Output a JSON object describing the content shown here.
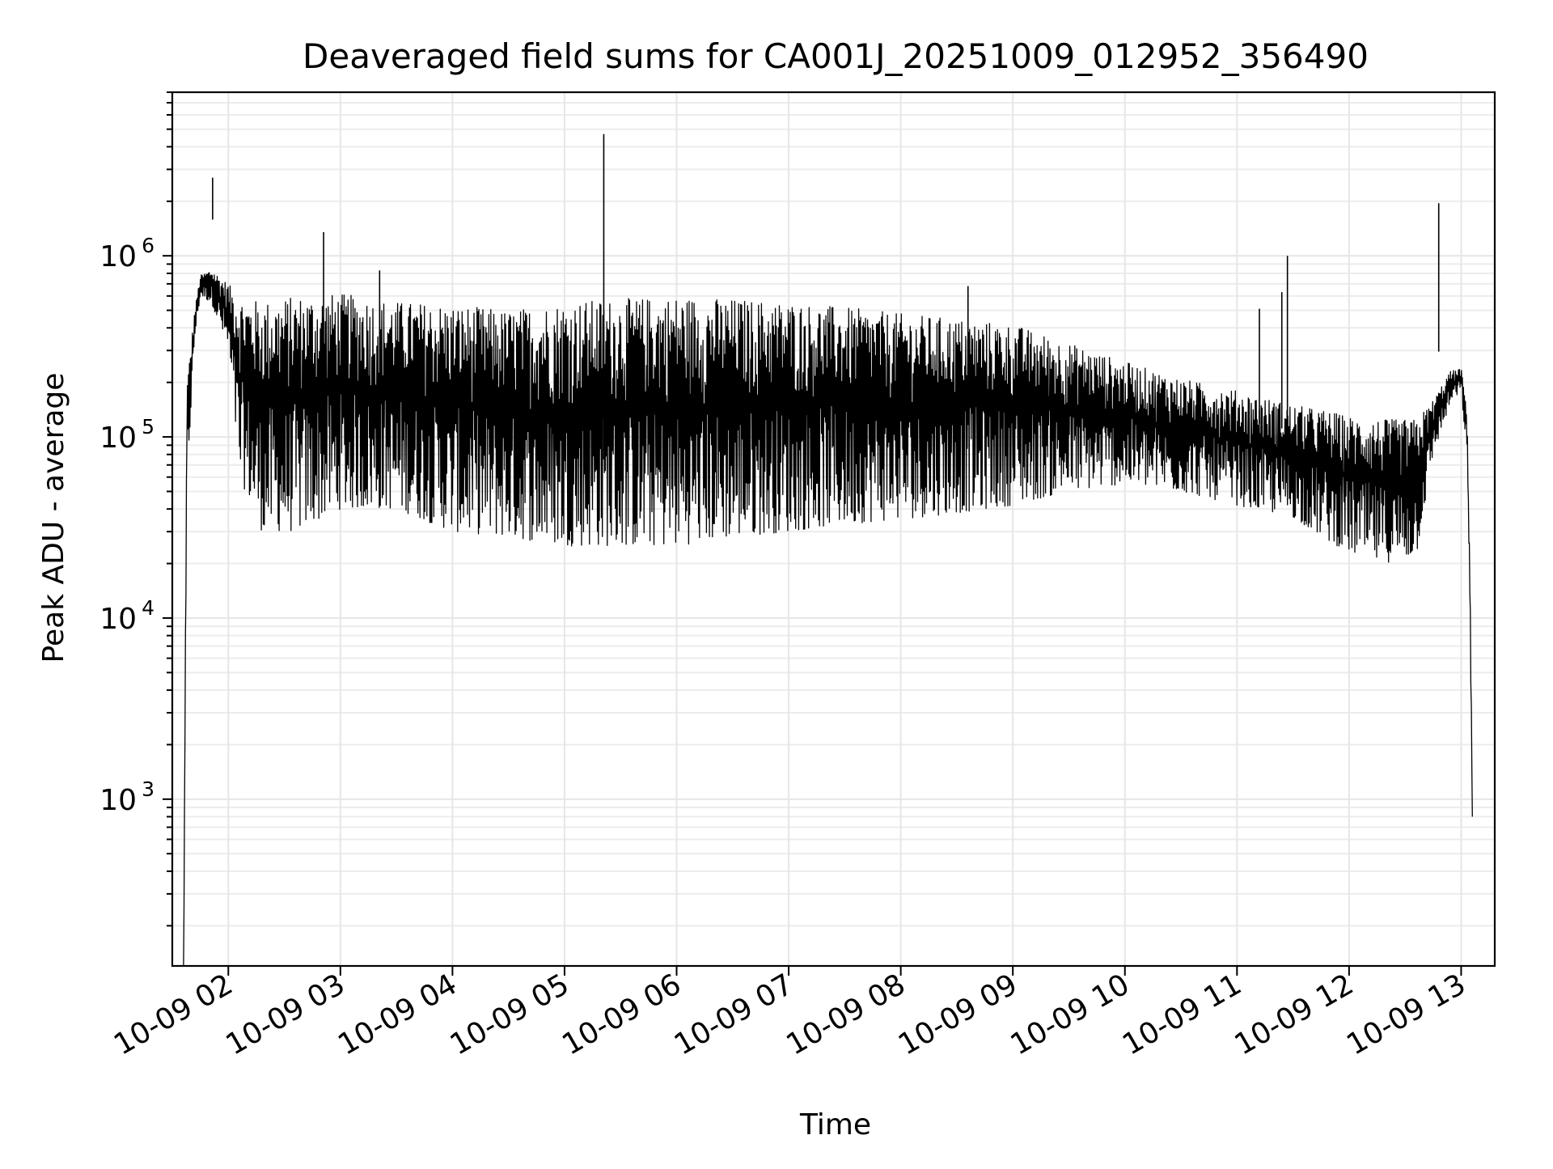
{
  "chart_data": {
    "type": "line",
    "title": "Deaveraged field sums for CA001J_20251009_012952_356490",
    "xlabel": "Time",
    "ylabel": "Peak ADU - average",
    "yscale": "log",
    "grid": true,
    "ylim": [
      120,
      8000000
    ],
    "xlim": [
      1.5,
      13.3
    ],
    "x_tick_values": [
      2,
      3,
      4,
      5,
      6,
      7,
      8,
      9,
      10,
      11,
      12,
      13
    ],
    "x_tick_labels": [
      "10-09 02",
      "10-09 03",
      "10-09 04",
      "10-09 05",
      "10-09 06",
      "10-09 07",
      "10-09 08",
      "10-09 09",
      "10-09 10",
      "10-09 11",
      "10-09 12",
      "10-09 13"
    ],
    "y_ticks": [
      {
        "value": 1000,
        "base": "10",
        "exp": "3"
      },
      {
        "value": 10000,
        "base": "10",
        "exp": "4"
      },
      {
        "value": 100000,
        "base": "10",
        "exp": "5"
      },
      {
        "value": 1000000,
        "base": "10",
        "exp": "6"
      }
    ],
    "series": [
      {
        "name": "Peak ADU - average",
        "color": "#000000",
        "envelope": {
          "x_hours": [
            1.6,
            1.63,
            1.7,
            1.75,
            1.85,
            2.0,
            2.1,
            2.3,
            2.6,
            3.0,
            3.5,
            4.0,
            4.5,
            5.0,
            5.5,
            6.0,
            6.5,
            7.0,
            7.5,
            8.0,
            8.5,
            9.0,
            9.5,
            10.0,
            10.5,
            11.0,
            11.5,
            11.8,
            12.0,
            12.3,
            12.6,
            12.75,
            12.9,
            13.0,
            13.05,
            13.08,
            13.1
          ],
          "upper": [
            100,
            200000,
            500000,
            780000,
            850000,
            700000,
            600000,
            560000,
            600000,
            620000,
            560000,
            540000,
            500000,
            560000,
            580000,
            600000,
            580000,
            560000,
            520000,
            480000,
            450000,
            420000,
            330000,
            260000,
            210000,
            180000,
            150000,
            140000,
            130000,
            125000,
            125000,
            160000,
            230000,
            240000,
            150000,
            20000,
            800
          ],
          "lower": [
            100,
            50000,
            350000,
            600000,
            550000,
            300000,
            60000,
            30000,
            30000,
            40000,
            40000,
            30000,
            28000,
            25000,
            25000,
            25000,
            28000,
            30000,
            33000,
            35000,
            38000,
            42000,
            50000,
            55000,
            50000,
            42000,
            36000,
            27000,
            23000,
            20000,
            22000,
            80000,
            150000,
            180000,
            80000,
            10000,
            800
          ]
        },
        "spikes": [
          {
            "x": 1.86,
            "y": 2700000
          },
          {
            "x": 2.85,
            "y": 1350000
          },
          {
            "x": 5.35,
            "y": 4700000
          },
          {
            "x": 11.45,
            "y": 1000000
          },
          {
            "x": 11.4,
            "y": 630000
          },
          {
            "x": 12.8,
            "y": 1950000
          },
          {
            "x": 11.2,
            "y": 510000
          },
          {
            "x": 8.6,
            "y": 680000
          },
          {
            "x": 3.35,
            "y": 830000
          }
        ]
      }
    ]
  }
}
